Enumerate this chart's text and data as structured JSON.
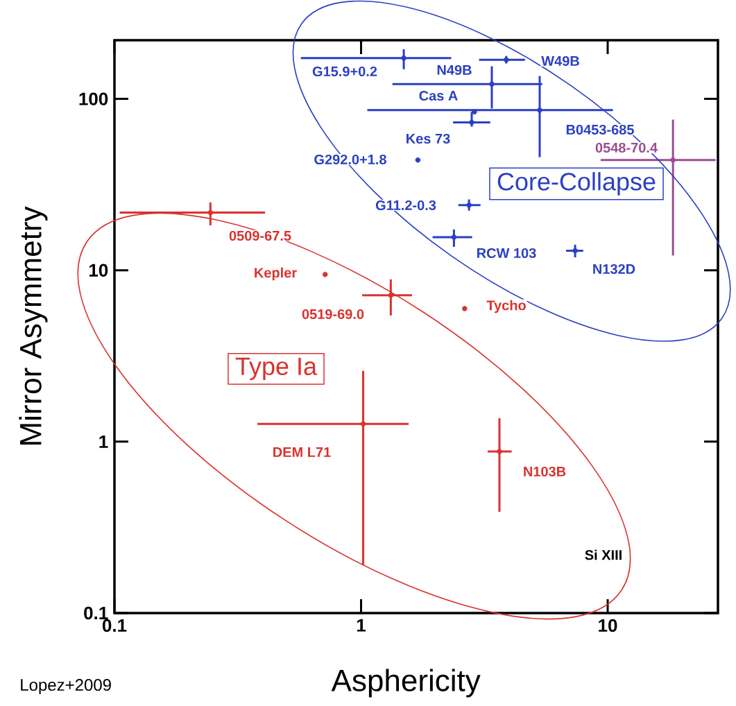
{
  "chart_data": {
    "type": "scatter",
    "xlabel": "Asphericity",
    "ylabel": "Mirror Asymmetry",
    "log": "xy",
    "xlim": [
      0.1,
      28
    ],
    "ylim": [
      0.1,
      220
    ],
    "xticks": [
      0.1,
      1,
      10
    ],
    "yticks": [
      0.1,
      1,
      10,
      100
    ],
    "marker": "circle",
    "series": [
      {
        "color": "#2b3fc4",
        "x": [
          1.49,
          3.88,
          3.39,
          5.3,
          2.88,
          2.81,
          1.7,
          2.74,
          2.38,
          7.38
        ],
        "values": [
          173,
          169,
          122,
          86,
          84,
          73,
          44,
          24,
          15.6,
          13.0
        ],
        "errors": [
          [
            149,
            195
          ],
          [
            161,
            178
          ],
          [
            88,
            155
          ],
          [
            45.7,
            136
          ],
          null,
          [
            68.9,
            83.8
          ],
          null,
          [
            22.3,
            25.9
          ],
          [
            13.7,
            17.3
          ],
          [
            11.9,
            14.1
          ]
        ],
        "xerrors": [
          [
            0.57,
            2.32
          ],
          [
            3.01,
            4.62
          ],
          [
            1.34,
            5.43
          ],
          [
            1.06,
            10.5
          ],
          null,
          [
            2.36,
            3.34
          ],
          null,
          [
            2.48,
            3.05
          ],
          [
            1.95,
            2.82
          ],
          [
            6.78,
            7.96
          ]
        ]
      },
      {
        "color": "#d8332f",
        "x": [
          0.245,
          0.715,
          1.32,
          2.63,
          1.02,
          3.64
        ],
        "values": [
          21.7,
          9.46,
          7.15,
          5.98,
          1.27,
          0.877
        ],
        "errors": [
          [
            18.3,
            24.9
          ],
          null,
          [
            5.45,
            8.85
          ],
          null,
          [
            0.19,
            2.59
          ],
          [
            0.39,
            1.37
          ]
        ],
        "xerrors": [
          [
            0.105,
            0.408
          ],
          null,
          [
            1.01,
            1.61
          ],
          null,
          [
            0.38,
            1.56
          ],
          [
            3.26,
            4.08
          ]
        ]
      },
      {
        "color": "#9b4d8f",
        "x": [
          18.4
        ],
        "values": [
          44
        ],
        "errors": [
          [
            12.2,
            75.7
          ]
        ],
        "xerrors": [
          [
            9.37,
            27.4
          ]
        ]
      }
    ],
    "annotations": [
      "G15.9+0.2",
      "N49B",
      "W49B",
      "Cas A",
      "Kes 73",
      "B0453-685",
      "G292.0+1.8",
      "0548-70.4",
      "G11.2-0.3",
      "RCW 103",
      "N132D",
      "0509-67.5",
      "Kepler",
      "0519-69.0",
      "Tycho",
      "DEM L71",
      "N103B",
      "Type Ia",
      "Core-Collapse",
      "Si XIII",
      "Lopez+2009"
    ]
  }
}
